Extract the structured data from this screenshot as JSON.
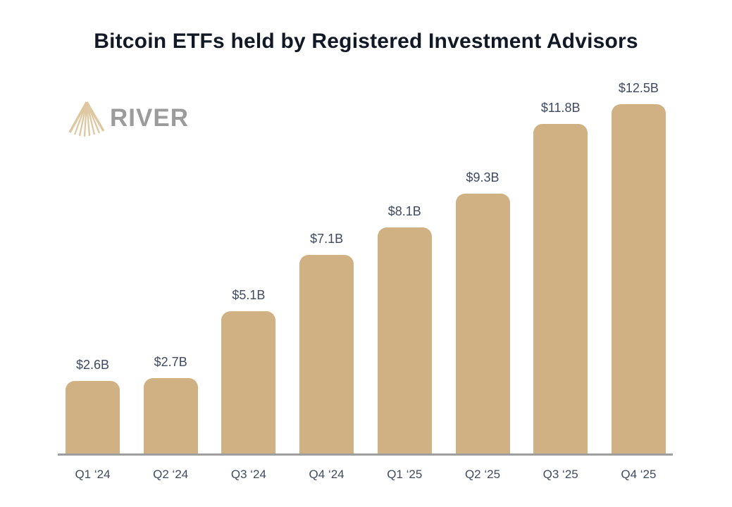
{
  "title": "Bitcoin ETFs held by Registered Investment Advisors",
  "logo": {
    "text": "RIVER",
    "icon": "river-rays-icon"
  },
  "colors": {
    "background": "#ffffff",
    "title": "#111826",
    "bar": "#d0b184",
    "logo_icon": "#dfc7a2",
    "logo_text": "#9b9b9b",
    "label": "#3e4a62",
    "axis_line": "#9e9e9e"
  },
  "chart_data": {
    "type": "bar",
    "title": "Bitcoin ETFs held by Registered Investment Advisors",
    "categories": [
      "Q1 ‘24",
      "Q2 ‘24",
      "Q3 ‘24",
      "Q4 ‘24",
      "Q1 ‘25",
      "Q2 ‘25",
      "Q3 ‘25",
      "Q4 ‘25"
    ],
    "values": [
      2.6,
      2.7,
      5.1,
      7.1,
      8.1,
      9.3,
      11.8,
      12.5
    ],
    "value_labels": [
      "$2.6B",
      "$2.7B",
      "$5.1B",
      "$7.1B",
      "$8.1B",
      "$9.3B",
      "$11.8B",
      "$12.5B"
    ],
    "xlabel": "",
    "ylabel": "",
    "ylim": [
      0,
      13
    ],
    "grid": false,
    "legend": false,
    "value_labels_position": "above-bars"
  }
}
